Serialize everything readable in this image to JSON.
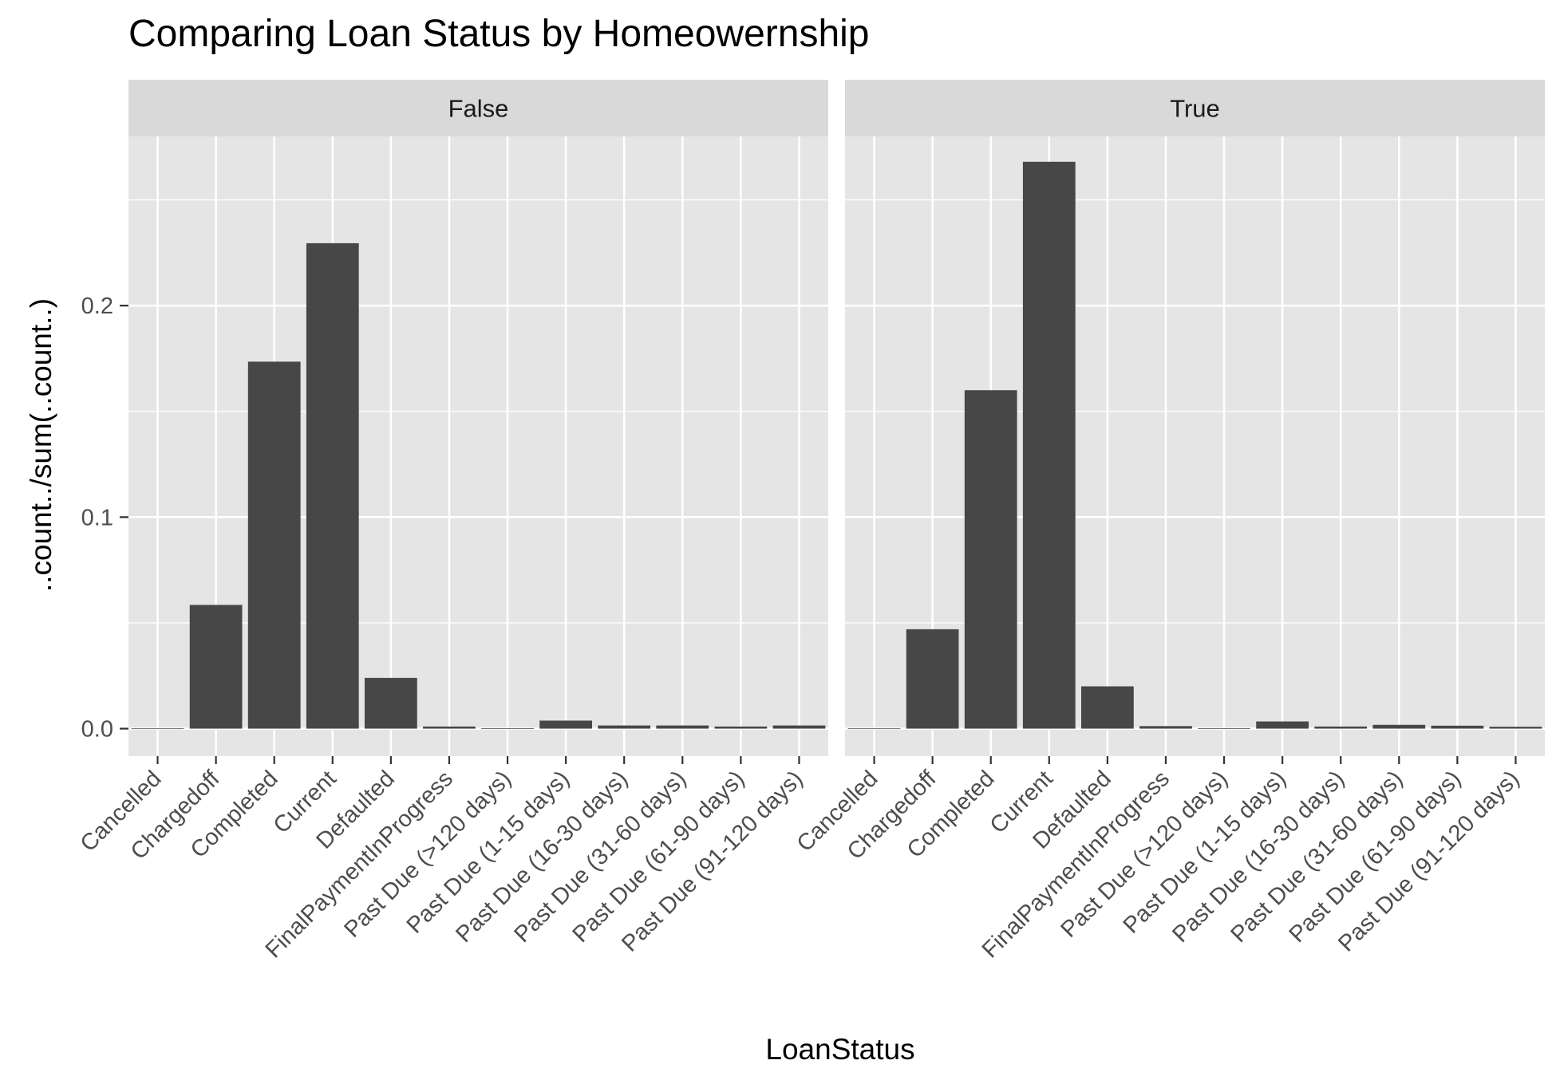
{
  "chart_data": {
    "type": "bar",
    "title": "Comparing Loan Status by Homeowernship",
    "xlabel": "LoanStatus",
    "ylabel": "..count../sum(..count..)",
    "ylim": [
      -0.013,
      0.28
    ],
    "yticks": [
      "0.0",
      "0.1",
      "0.2"
    ],
    "ytick_values": [
      0,
      0.1,
      0.2
    ],
    "grid": true,
    "categories": [
      "Cancelled",
      "Chargedoff",
      "Completed",
      "Current",
      "Defaulted",
      "FinalPaymentInProgress",
      "Past Due (>120 days)",
      "Past Due (1-15 days)",
      "Past Due (16-30 days)",
      "Past Due (31-60 days)",
      "Past Due (61-90 days)",
      "Past Due (91-120 days)"
    ],
    "facets": [
      {
        "label": "False",
        "values": [
          0.0001,
          0.0585,
          0.1735,
          0.2295,
          0.024,
          0.001,
          0.0002,
          0.0038,
          0.0015,
          0.0015,
          0.001,
          0.0015
        ]
      },
      {
        "label": "True",
        "values": [
          0.0001,
          0.047,
          0.16,
          0.268,
          0.02,
          0.0012,
          0.0002,
          0.0034,
          0.001,
          0.0018,
          0.0014,
          0.0009
        ]
      }
    ],
    "colors": {
      "bar": "#474747",
      "panel_background": "#e5e5e5",
      "grid": "#ffffff",
      "strip_background": "#d9d9d9",
      "tick": "#333333"
    }
  }
}
